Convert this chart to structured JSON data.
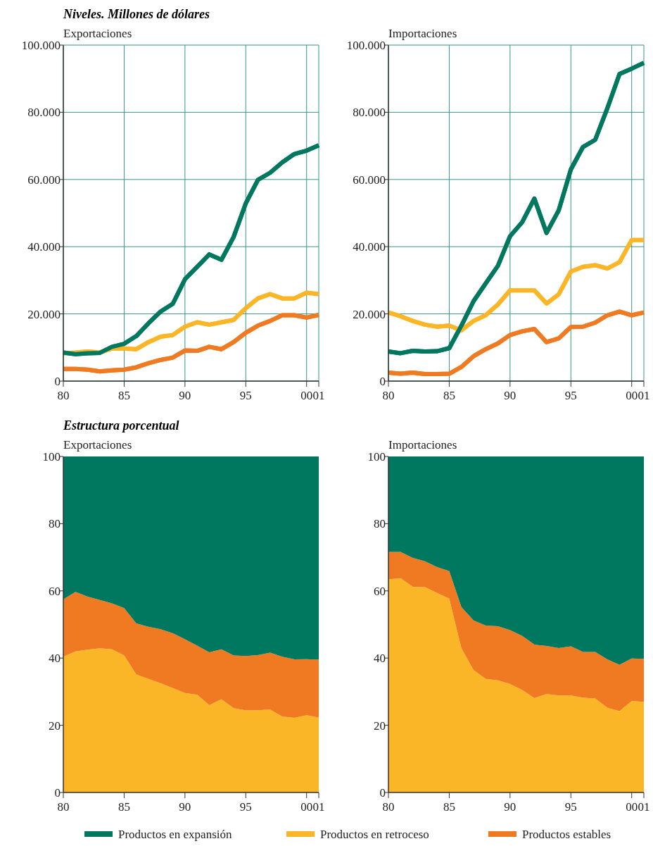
{
  "chart_data": [
    {
      "type": "line",
      "title": "Exportaciones",
      "annotations": [
        "Niveles. Millones de dólares"
      ],
      "x": [
        1980,
        1981,
        1982,
        1983,
        1984,
        1985,
        1986,
        1987,
        1988,
        1989,
        1990,
        1991,
        1992,
        1993,
        1994,
        1995,
        1996,
        1997,
        1998,
        1999,
        2000,
        2001
      ],
      "xlim": [
        1980,
        2001
      ],
      "xticks": [
        {
          "value": 1980,
          "label": "80"
        },
        {
          "value": 1985,
          "label": "85"
        },
        {
          "value": 1990,
          "label": "90"
        },
        {
          "value": 1995,
          "label": "95"
        },
        {
          "value": 2000,
          "label": "00"
        },
        {
          "value": 2001,
          "label": "01"
        }
      ],
      "ylim": [
        0,
        100000
      ],
      "yticks": [
        0,
        {
          "value": 20000,
          "label": "20.000"
        },
        {
          "value": 40000,
          "label": "40.000"
        },
        {
          "value": 60000,
          "label": "60.000"
        },
        {
          "value": 80000,
          "label": "80.000"
        },
        {
          "value": 100000,
          "label": "100.000"
        }
      ],
      "grid": true,
      "legend": false,
      "series": [
        {
          "color": "#fbb627",
          "values": [
            8300,
            8500,
            8800,
            8500,
            9700,
            9700,
            9500,
            11600,
            13200,
            13700,
            16200,
            17500,
            16800,
            17500,
            18200,
            21700,
            24600,
            25900,
            24600,
            24600,
            26300,
            25900
          ]
        },
        {
          "color": "#f07a22",
          "values": [
            3600,
            3600,
            3400,
            2900,
            3200,
            3400,
            4100,
            5300,
            6300,
            7000,
            9100,
            9000,
            10200,
            9500,
            11600,
            14400,
            16500,
            17900,
            19600,
            19600,
            18900,
            19700
          ]
        },
        {
          "color": "#00775f",
          "values": [
            8500,
            8000,
            8300,
            8400,
            10200,
            11100,
            13400,
            17200,
            20700,
            23000,
            30300,
            34000,
            37700,
            36100,
            42900,
            52900,
            59900,
            62000,
            65100,
            67600,
            68600,
            70200
          ]
        }
      ]
    },
    {
      "type": "line",
      "title": "Importaciones",
      "x": [
        1980,
        1981,
        1982,
        1983,
        1984,
        1985,
        1986,
        1987,
        1988,
        1989,
        1990,
        1991,
        1992,
        1993,
        1994,
        1995,
        1996,
        1997,
        1998,
        1999,
        2000,
        2001
      ],
      "xlim": [
        1980,
        2001
      ],
      "xticks": [
        {
          "value": 1980,
          "label": "80"
        },
        {
          "value": 1985,
          "label": "85"
        },
        {
          "value": 1990,
          "label": "90"
        },
        {
          "value": 1995,
          "label": "95"
        },
        {
          "value": 2000,
          "label": "00"
        },
        {
          "value": 2001,
          "label": "01"
        }
      ],
      "ylim": [
        0,
        100000
      ],
      "yticks": [
        0,
        {
          "value": 20000,
          "label": "20.000"
        },
        {
          "value": 40000,
          "label": "40.000"
        },
        {
          "value": 60000,
          "label": "60.000"
        },
        {
          "value": 80000,
          "label": "80.000"
        },
        {
          "value": 100000,
          "label": "100.000"
        }
      ],
      "grid": true,
      "legend": false,
      "series": [
        {
          "color": "#fbb627",
          "values": [
            20400,
            19300,
            17900,
            16800,
            16200,
            16500,
            15100,
            17900,
            19600,
            22800,
            27000,
            27000,
            27000,
            23100,
            25800,
            32600,
            34000,
            34500,
            33500,
            35400,
            42000,
            42000
          ]
        },
        {
          "color": "#f07a22",
          "values": [
            2500,
            2200,
            2500,
            2100,
            2100,
            2200,
            4200,
            7400,
            9500,
            11200,
            13700,
            14800,
            15500,
            11600,
            12700,
            16100,
            16200,
            17400,
            19600,
            20700,
            19600,
            20400
          ]
        },
        {
          "color": "#00775f",
          "values": [
            8800,
            8300,
            9000,
            8800,
            8900,
            9800,
            16500,
            23800,
            29100,
            34300,
            43100,
            47300,
            54300,
            44100,
            50800,
            63000,
            69700,
            71800,
            81200,
            91400,
            93000,
            94700
          ]
        }
      ]
    },
    {
      "type": "area",
      "stacked": true,
      "title": "Exportaciones",
      "annotations": [
        "Estructura porcentual"
      ],
      "x": [
        1980,
        1981,
        1982,
        1983,
        1984,
        1985,
        1986,
        1987,
        1988,
        1989,
        1990,
        1991,
        1992,
        1993,
        1994,
        1995,
        1996,
        1997,
        1998,
        1999,
        2000,
        2001
      ],
      "xlim": [
        1980,
        2001
      ],
      "xticks": [
        {
          "value": 1980,
          "label": "80"
        },
        {
          "value": 1985,
          "label": "85"
        },
        {
          "value": 1990,
          "label": "90"
        },
        {
          "value": 1995,
          "label": "95"
        },
        {
          "value": 2000,
          "label": "00"
        },
        {
          "value": 2001,
          "label": "01"
        }
      ],
      "ylim": [
        0,
        100
      ],
      "yticks": [
        0,
        20,
        40,
        60,
        80,
        100
      ],
      "legend": false,
      "series": [
        {
          "color": "#fbb627",
          "values": [
            40.4,
            42.0,
            42.5,
            42.9,
            42.6,
            40.8,
            35.1,
            33.8,
            32.5,
            31.1,
            29.6,
            29.1,
            26.0,
            27.7,
            25.1,
            24.4,
            24.5,
            24.7,
            22.6,
            22.2,
            23.0,
            22.3
          ]
        },
        {
          "color": "#f07a22",
          "values": [
            17.1,
            17.7,
            15.8,
            14.4,
            13.7,
            14.1,
            15.2,
            15.5,
            16.1,
            16.3,
            16.0,
            14.6,
            15.7,
            14.9,
            15.7,
            16.2,
            16.4,
            16.9,
            17.8,
            17.4,
            16.7,
            17.2
          ]
        },
        {
          "color": "#00775f",
          "values": [
            42.5,
            40.3,
            41.7,
            42.7,
            43.7,
            45.1,
            49.7,
            50.7,
            51.4,
            52.6,
            54.4,
            56.3,
            58.3,
            57.4,
            59.2,
            59.4,
            59.1,
            58.4,
            59.6,
            60.4,
            60.3,
            60.5
          ]
        }
      ]
    },
    {
      "type": "area",
      "stacked": true,
      "title": "Importaciones",
      "x": [
        1980,
        1981,
        1982,
        1983,
        1984,
        1985,
        1986,
        1987,
        1988,
        1989,
        1990,
        1991,
        1992,
        1993,
        1994,
        1995,
        1996,
        1997,
        1998,
        1999,
        2000,
        2001
      ],
      "xlim": [
        1980,
        2001
      ],
      "xticks": [
        {
          "value": 1980,
          "label": "80"
        },
        {
          "value": 1985,
          "label": "85"
        },
        {
          "value": 1990,
          "label": "90"
        },
        {
          "value": 1995,
          "label": "95"
        },
        {
          "value": 2000,
          "label": "00"
        },
        {
          "value": 2001,
          "label": "01"
        }
      ],
      "ylim": [
        0,
        100
      ],
      "yticks": [
        0,
        20,
        40,
        60,
        80,
        100
      ],
      "legend": "bottom",
      "series": [
        {
          "name": "Productos en retroceso",
          "color": "#fbb627",
          "values": [
            63.4,
            63.8,
            61.2,
            61.1,
            59.4,
            57.7,
            42.9,
            36.4,
            33.8,
            33.4,
            32.3,
            30.5,
            28.1,
            29.3,
            28.9,
            28.9,
            28.2,
            28.0,
            25.2,
            24.2,
            27.2,
            27.0
          ]
        },
        {
          "name": "Productos estables",
          "color": "#f07a22",
          "values": [
            8.2,
            7.8,
            8.6,
            7.7,
            7.7,
            8.2,
            12.3,
            14.8,
            15.9,
            16.1,
            16.0,
            16.1,
            15.9,
            14.3,
            14.1,
            14.6,
            13.6,
            13.8,
            14.4,
            13.8,
            12.7,
            12.8
          ]
        },
        {
          "name": "Productos en expansión",
          "color": "#00775f",
          "values": [
            28.4,
            28.4,
            30.2,
            31.2,
            32.9,
            34.1,
            44.8,
            48.8,
            50.3,
            50.5,
            51.7,
            53.4,
            56.0,
            56.4,
            57.0,
            56.5,
            58.2,
            58.2,
            60.4,
            62.0,
            60.1,
            60.2
          ]
        }
      ]
    }
  ]
}
